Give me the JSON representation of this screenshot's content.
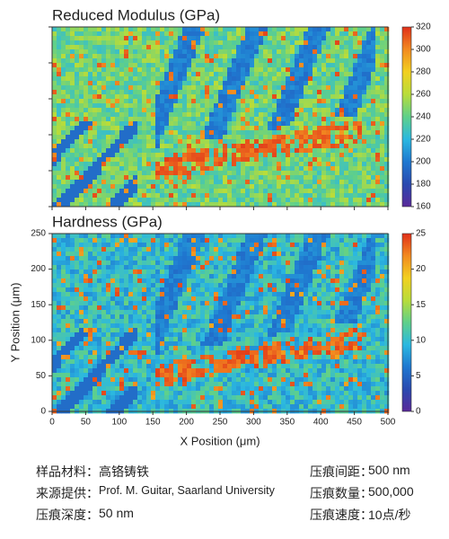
{
  "chart_data": [
    {
      "type": "heatmap",
      "title": "Reduced Modulus (GPa)",
      "colorbar": {
        "lim": [
          160,
          320
        ],
        "ticks": [
          160,
          180,
          200,
          220,
          240,
          260,
          280,
          300,
          320
        ]
      },
      "colors": [
        "#5a2a9a",
        "#2a4ab0",
        "#1f78d0",
        "#2bb8e0",
        "#5fd08a",
        "#b8dc3a",
        "#f2d020",
        "#f28a20",
        "#e0301a"
      ]
    },
    {
      "type": "heatmap",
      "title": "Hardness (GPa)",
      "xlabel": "X Position (μm)",
      "ylabel": "Y Position (μm)",
      "xlim": [
        0,
        500
      ],
      "xticks": [
        0,
        50,
        100,
        150,
        200,
        250,
        300,
        350,
        400,
        450,
        500
      ],
      "ylim": [
        0,
        250
      ],
      "yticks": [
        0,
        50,
        100,
        150,
        200,
        250
      ],
      "colorbar": {
        "lim": [
          0,
          25
        ],
        "ticks": [
          0,
          5,
          10,
          15,
          20,
          25
        ]
      },
      "colors": [
        "#5a2a9a",
        "#2a4ab0",
        "#1f78d0",
        "#2bb8e0",
        "#5fd08a",
        "#b8dc3a",
        "#f2d020",
        "#f28a20",
        "#e0301a"
      ]
    }
  ],
  "info": {
    "rows": [
      [
        "样品材料：",
        "高铬铸铁",
        "压痕间距：",
        "500 nm"
      ],
      [
        "来源提供：",
        "Prof. M. Guitar, Saarland University",
        "压痕数量：",
        "500,000"
      ],
      [
        "压痕深度：",
        "50 nm",
        "压痕速度：",
        "10点/秒"
      ]
    ]
  }
}
